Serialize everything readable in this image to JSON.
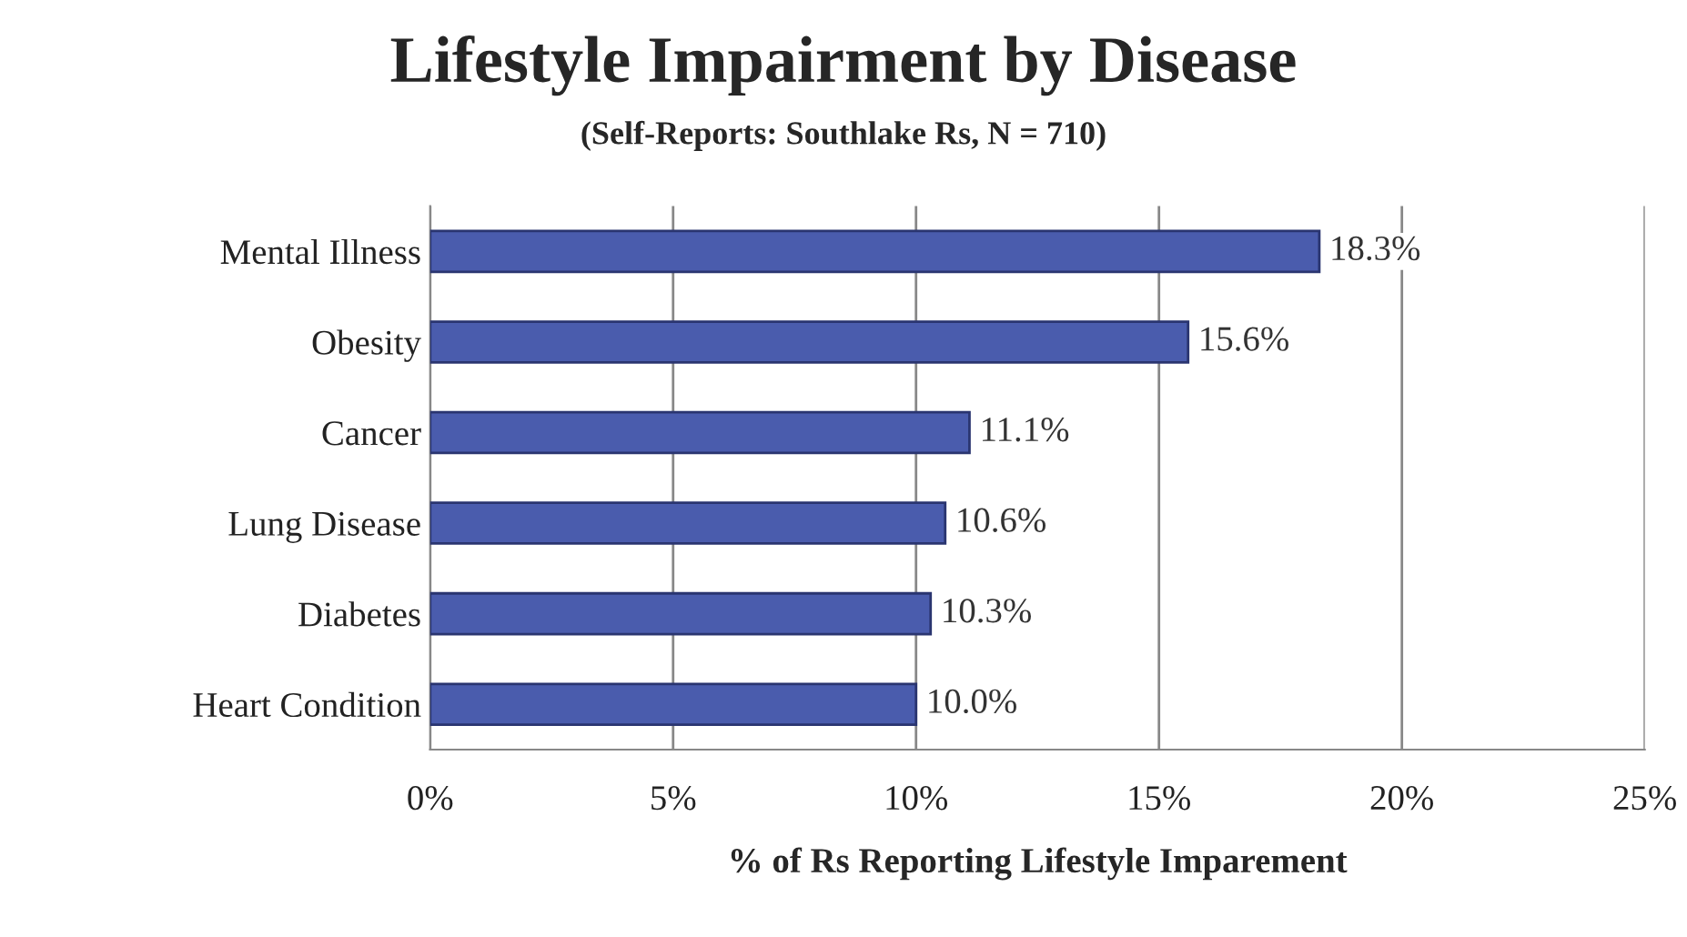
{
  "chart_data": {
    "type": "bar",
    "orientation": "horizontal",
    "title": "Lifestyle Impairment by Disease",
    "subtitle": "(Self-Reports: Southlake Rs, N = 710)",
    "xlabel": "% of Rs Reporting Lifestyle Imparement",
    "categories": [
      "Mental Illness",
      "Obesity",
      "Cancer",
      "Lung Disease",
      "Diabetes",
      "Heart Condition"
    ],
    "values": [
      18.3,
      15.6,
      11.1,
      10.6,
      10.3,
      10.0
    ],
    "value_labels": [
      "18.3%",
      "15.6%",
      "11.1%",
      "10.6%",
      "10.3%",
      "10.0%"
    ],
    "color": "#4a5cad",
    "xlim": [
      0,
      25
    ],
    "xticks": [
      {
        "value": 0,
        "label": "0%"
      },
      {
        "value": 5,
        "label": "5%"
      },
      {
        "value": 10,
        "label": "10%"
      },
      {
        "value": 15,
        "label": "15%"
      },
      {
        "value": 20,
        "label": "20%"
      },
      {
        "value": 25,
        "label": "25%"
      }
    ],
    "grid": "x"
  }
}
